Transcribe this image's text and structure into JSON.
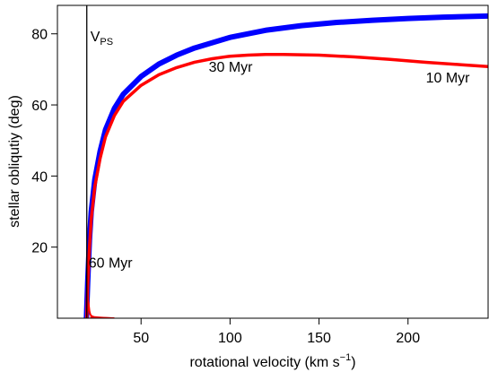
{
  "chart_data": {
    "type": "line",
    "xlabel": "rotational velocity  (km s",
    "xlabel_sup": "−1",
    "xlabel_close": ")",
    "ylabel": "stellar obliqutiy (deg)",
    "xlim": [
      3,
      245
    ],
    "ylim": [
      0,
      88
    ],
    "x_ticks": [
      50,
      100,
      150,
      200
    ],
    "y_ticks": [
      20,
      40,
      60,
      80
    ],
    "grid": false,
    "vline": {
      "x": 19.5,
      "label_main": "V",
      "label_sub": "PS",
      "color": "#000000"
    },
    "series": [
      {
        "color": "#0000ff",
        "width": 6,
        "x": [
          19.3,
          20,
          21,
          22,
          24,
          27,
          30,
          35,
          40,
          50,
          60,
          70,
          80,
          100,
          120,
          140,
          160,
          180,
          200,
          220,
          245
        ],
        "y": [
          0,
          10,
          22,
          30,
          39,
          47,
          53,
          59,
          63,
          68,
          71.5,
          74,
          76,
          79,
          81,
          82.3,
          83.2,
          83.8,
          84.3,
          84.7,
          85.0
        ]
      },
      {
        "color": "#ff0000",
        "width": 3.5,
        "x": [
          19.5,
          20,
          21,
          22,
          24,
          27,
          30,
          35,
          40,
          50,
          60,
          70,
          80,
          90,
          100,
          110,
          120,
          130,
          140,
          150,
          170,
          190,
          210,
          230,
          245
        ],
        "y": [
          0,
          9,
          20,
          28,
          37,
          45,
          51,
          57,
          61,
          65.5,
          68.5,
          70.5,
          72,
          73,
          73.7,
          74.0,
          74.2,
          74.2,
          74.1,
          74.0,
          73.5,
          72.8,
          72.0,
          71.3,
          70.8
        ]
      },
      {
        "color": "#ff0000",
        "width": 2,
        "x": [
          19.8,
          20.3,
          21,
          21.5,
          22.5,
          24,
          27,
          30,
          33
        ],
        "y": [
          12,
          5,
          2,
          1,
          0.5,
          0.3,
          0.2,
          0.1,
          0
        ]
      },
      {
        "color": "#ff0000",
        "width": 2,
        "x": [
          21.5,
          23,
          26,
          30,
          35
        ],
        "y": [
          0.4,
          0.2,
          0.1,
          0.05,
          0
        ]
      }
    ],
    "annotations": [
      {
        "text": "30 Myr",
        "x": 88,
        "y": 69.3
      },
      {
        "text": "10 Myr",
        "x": 210,
        "y": 66.3
      },
      {
        "text": "60 Myr",
        "x": 20.5,
        "y": 14.2
      }
    ]
  }
}
